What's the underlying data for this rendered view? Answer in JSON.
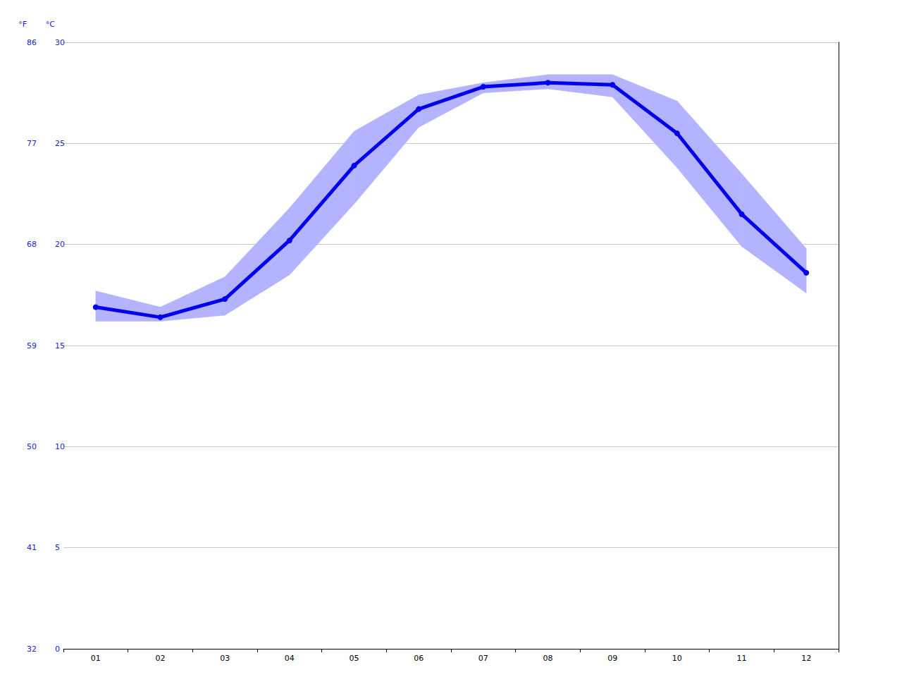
{
  "chart_data": {
    "type": "line",
    "categories": [
      "01",
      "02",
      "03",
      "04",
      "05",
      "06",
      "07",
      "08",
      "09",
      "10",
      "11",
      "12"
    ],
    "series": [
      {
        "color": "#0000ee",
        "values": [
          16.9,
          16.4,
          17.3,
          20.2,
          23.9,
          26.7,
          27.8,
          28.0,
          27.9,
          25.5,
          21.5,
          18.6
        ],
        "low": [
          16.2,
          16.2,
          16.5,
          18.5,
          22.0,
          25.8,
          27.5,
          27.7,
          27.3,
          23.8,
          19.9,
          17.6
        ],
        "high": [
          17.7,
          16.9,
          18.4,
          21.8,
          25.6,
          27.4,
          28.0,
          28.4,
          28.4,
          27.1,
          23.5,
          19.8
        ]
      }
    ],
    "ylabel": "°C",
    "ylim": [
      0,
      30
    ],
    "yticks": [
      0,
      5,
      10,
      15,
      20,
      25,
      30
    ],
    "y2label": "°F",
    "y2lim": [
      32,
      86
    ],
    "y2ticks": [
      32,
      41,
      50,
      59,
      68,
      77,
      86
    ],
    "grid": true
  }
}
